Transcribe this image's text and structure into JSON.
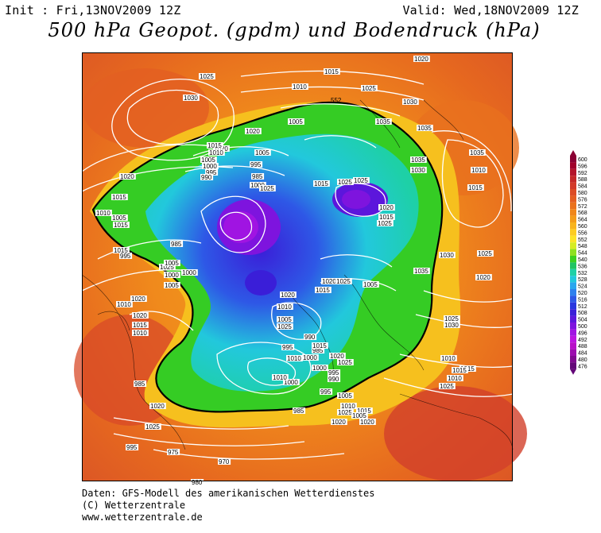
{
  "header": {
    "init": "Init : Fri,13NOV2009 12Z",
    "valid": "Valid: Wed,18NOV2009 12Z",
    "title": "500 hPa Geopot. (gpdm) und Bodendruck (hPa)"
  },
  "legend": {
    "values": [
      "600",
      "596",
      "592",
      "588",
      "584",
      "580",
      "576",
      "572",
      "568",
      "564",
      "560",
      "556",
      "552",
      "548",
      "544",
      "540",
      "536",
      "532",
      "528",
      "524",
      "520",
      "516",
      "512",
      "508",
      "504",
      "500",
      "496",
      "492",
      "488",
      "484",
      "480",
      "476"
    ],
    "colors": [
      "#8a0033",
      "#a0002a",
      "#b4142a",
      "#c42828",
      "#d23a2a",
      "#dc4c26",
      "#e45e22",
      "#ea721e",
      "#f0861a",
      "#f49c1a",
      "#f8b41e",
      "#fccc22",
      "#fce428",
      "#d6ec24",
      "#8ee020",
      "#3cd020",
      "#20c464",
      "#1ed0a6",
      "#22c8dc",
      "#2aa6ee",
      "#2e80ee",
      "#2e58e6",
      "#2a36de",
      "#3a1ed8",
      "#5c16dc",
      "#7e14de",
      "#a014e2",
      "#bc14e0",
      "#b810c8",
      "#9c0cae",
      "#800a90",
      "#640878"
    ]
  },
  "map": {
    "isobar_labels": [
      {
        "t": "1020"
      },
      {
        "t": "1025"
      },
      {
        "t": "1030"
      },
      {
        "t": "1010"
      },
      {
        "t": "1015"
      },
      {
        "t": "1025"
      },
      {
        "t": "1030"
      },
      {
        "t": "1035"
      },
      {
        "t": "1035"
      },
      {
        "t": "1035"
      },
      {
        "t": "1010"
      },
      {
        "t": "1015"
      },
      {
        "t": "1005"
      },
      {
        "t": "1020"
      },
      {
        "t": "1020"
      },
      {
        "t": "1015"
      },
      {
        "t": "1010"
      },
      {
        "t": "1005"
      },
      {
        "t": "1000"
      },
      {
        "t": "995"
      },
      {
        "t": "990"
      },
      {
        "t": "1005"
      },
      {
        "t": "995"
      },
      {
        "t": "985"
      },
      {
        "t": "1000"
      },
      {
        "t": "1025"
      },
      {
        "t": "1015"
      },
      {
        "t": "1025"
      },
      {
        "t": "1035"
      },
      {
        "t": "1030"
      },
      {
        "t": "1025"
      },
      {
        "t": "1020"
      },
      {
        "t": "1015"
      },
      {
        "t": "1025"
      },
      {
        "t": "1020"
      },
      {
        "t": "1015"
      },
      {
        "t": "1010"
      },
      {
        "t": "1005"
      },
      {
        "t": "995"
      },
      {
        "t": "985"
      },
      {
        "t": "1000"
      },
      {
        "t": "1025"
      },
      {
        "t": "1020"
      },
      {
        "t": "1020"
      },
      {
        "t": "1015"
      },
      {
        "t": "1010"
      },
      {
        "t": "1005"
      },
      {
        "t": "1000"
      },
      {
        "t": "1005"
      },
      {
        "t": "1010"
      },
      {
        "t": "1015"
      },
      {
        "t": "1015"
      },
      {
        "t": "1035"
      },
      {
        "t": "1030"
      },
      {
        "t": "1020"
      },
      {
        "t": "1025"
      },
      {
        "t": "1030"
      },
      {
        "t": "1025"
      },
      {
        "t": "1010"
      },
      {
        "t": "1015"
      },
      {
        "t": "1020"
      },
      {
        "t": "1025"
      },
      {
        "t": "1005"
      },
      {
        "t": "1015"
      },
      {
        "t": "1020"
      },
      {
        "t": "1010"
      },
      {
        "t": "1005"
      },
      {
        "t": "1025"
      },
      {
        "t": "995"
      },
      {
        "t": "990"
      },
      {
        "t": "985"
      },
      {
        "t": "1000"
      },
      {
        "t": "1000"
      },
      {
        "t": "995"
      },
      {
        "t": "990"
      },
      {
        "t": "995"
      },
      {
        "t": "1005"
      },
      {
        "t": "1010"
      },
      {
        "t": "1025"
      },
      {
        "t": "1015"
      },
      {
        "t": "1020"
      },
      {
        "t": "1005"
      },
      {
        "t": "1020"
      },
      {
        "t": "1020"
      },
      {
        "t": "1025"
      },
      {
        "t": "995"
      },
      {
        "t": "975"
      },
      {
        "t": "985"
      },
      {
        "t": "980"
      },
      {
        "t": "970"
      },
      {
        "t": "1025"
      },
      {
        "t": "1020"
      },
      {
        "t": "1015"
      },
      {
        "t": "1010"
      },
      {
        "t": "985"
      },
      {
        "t": "1000"
      },
      {
        "t": "1010"
      },
      {
        "t": "1025"
      },
      {
        "t": "1015"
      },
      {
        "t": "1010"
      }
    ],
    "contour_label_552": "552"
  },
  "footer": {
    "line1": "Daten: GFS-Modell des amerikanischen Wetterdienstes",
    "line2": "(C) Wetterzentrale",
    "line3": "www.wetterzentrale.de"
  }
}
